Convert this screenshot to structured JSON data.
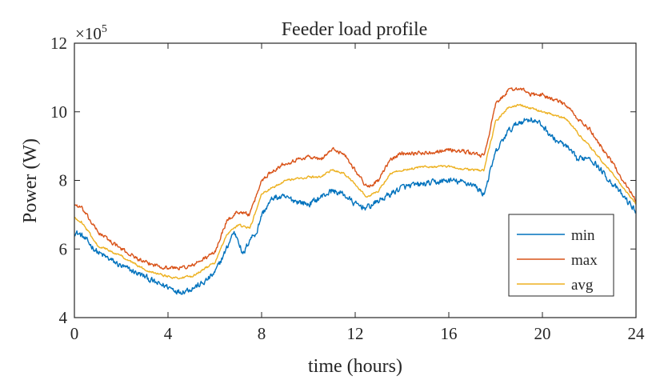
{
  "chart_data": {
    "type": "line",
    "title": "Feeder load profile",
    "xlabel": "time (hours)",
    "ylabel": "Power (W)",
    "xlim": [
      0,
      24
    ],
    "ylim": [
      4,
      12
    ],
    "y_multiplier": {
      "base": "×10",
      "exponent": "5"
    },
    "xticks": [
      0,
      4,
      8,
      12,
      16,
      20,
      24
    ],
    "yticks": [
      4,
      6,
      8,
      10,
      12
    ],
    "legend_position": "bottom-right",
    "series": [
      {
        "name": "min",
        "color": "#0072BD",
        "noise": 0.14,
        "x": [
          0,
          0.3,
          1,
          2,
          3,
          3.5,
          4,
          4.5,
          5,
          5.5,
          6,
          6.5,
          6.8,
          7,
          7.2,
          7.5,
          7.8,
          8,
          8.5,
          9,
          9.5,
          10,
          10.5,
          11,
          11.5,
          12,
          12.5,
          13,
          13.5,
          14,
          15,
          16,
          17,
          17.5,
          18,
          18.5,
          19,
          19.5,
          20,
          20.5,
          21,
          21.5,
          22,
          23,
          24
        ],
        "y": [
          6.5,
          6.4,
          5.9,
          5.5,
          5.2,
          5.0,
          4.9,
          4.75,
          4.85,
          5.0,
          5.3,
          6.0,
          6.5,
          6.3,
          5.8,
          6.3,
          6.5,
          7.0,
          7.5,
          7.5,
          7.4,
          7.3,
          7.5,
          7.7,
          7.6,
          7.3,
          7.2,
          7.4,
          7.6,
          7.8,
          7.9,
          8.0,
          7.9,
          7.6,
          8.8,
          9.4,
          9.7,
          9.8,
          9.6,
          9.2,
          9.0,
          8.6,
          8.7,
          7.9,
          7.1
        ]
      },
      {
        "name": "max",
        "color": "#D95319",
        "noise": 0.09,
        "x": [
          0,
          0.3,
          1,
          2,
          3,
          4,
          4.5,
          5,
          5.5,
          6,
          6.5,
          7,
          7.5,
          8,
          8.5,
          9,
          10,
          10.5,
          11,
          11.5,
          12,
          12.5,
          13,
          13.5,
          14,
          15,
          16,
          17,
          17.5,
          18,
          18.5,
          19,
          19.5,
          20,
          21,
          21.5,
          22,
          23,
          24
        ],
        "y": [
          7.3,
          7.2,
          6.5,
          6.0,
          5.6,
          5.45,
          5.45,
          5.5,
          5.7,
          5.9,
          6.8,
          7.1,
          7.0,
          8.0,
          8.3,
          8.5,
          8.7,
          8.6,
          8.9,
          8.8,
          8.3,
          7.8,
          8.0,
          8.6,
          8.8,
          8.8,
          8.9,
          8.8,
          8.7,
          10.2,
          10.6,
          10.7,
          10.5,
          10.5,
          10.2,
          9.8,
          9.5,
          8.5,
          7.4
        ]
      },
      {
        "name": "avg",
        "color": "#EDB120",
        "noise": 0.05,
        "x": [
          0,
          0.3,
          1,
          2,
          3,
          4,
          4.5,
          5,
          5.5,
          6,
          6.5,
          7,
          7.5,
          8,
          8.5,
          9,
          10,
          10.5,
          11,
          11.5,
          12,
          12.5,
          13,
          13.5,
          14,
          15,
          16,
          17,
          17.5,
          18,
          18.5,
          19,
          19.5,
          20,
          21,
          21.5,
          22,
          23,
          24
        ],
        "y": [
          6.9,
          6.8,
          6.1,
          5.8,
          5.4,
          5.2,
          5.15,
          5.2,
          5.4,
          5.6,
          6.4,
          6.7,
          6.6,
          7.6,
          7.8,
          8.0,
          8.1,
          8.1,
          8.3,
          8.2,
          7.9,
          7.5,
          7.7,
          8.2,
          8.3,
          8.4,
          8.4,
          8.3,
          8.3,
          9.7,
          10.1,
          10.2,
          10.1,
          10.0,
          9.8,
          9.4,
          9.0,
          8.2,
          7.3
        ]
      }
    ]
  }
}
